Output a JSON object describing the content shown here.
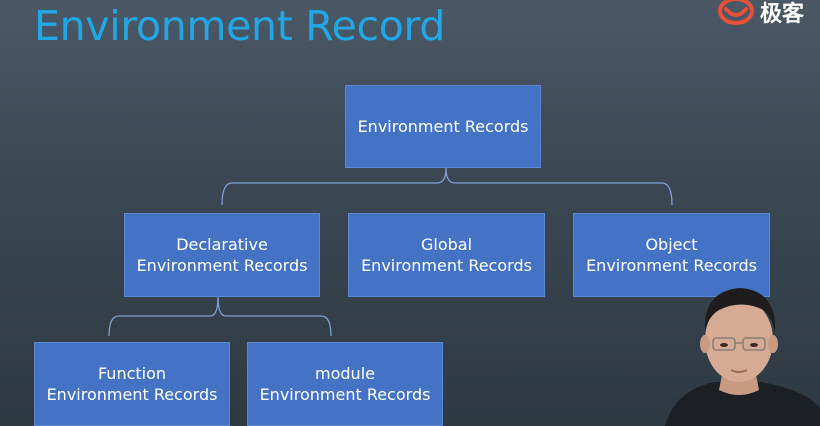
{
  "slide": {
    "title": "Environment Record"
  },
  "logo": {
    "icon": "geekbang-logo-icon",
    "text": "极客",
    "color": "#e8503a"
  },
  "diagram": {
    "root": {
      "line1": "Environment Records"
    },
    "children": [
      {
        "line1": "Declarative",
        "line2": "Environment Records"
      },
      {
        "line1": "Global",
        "line2": "Environment Records"
      },
      {
        "line1": "Object",
        "line2": "Environment Records"
      }
    ],
    "grandchildren": [
      {
        "line1": "Function",
        "line2": "Environment Records"
      },
      {
        "line1": "module",
        "line2": "Environment Records"
      }
    ]
  },
  "colors": {
    "title": "#22a7e6",
    "node_fill": "#4473c5",
    "connector": "#7f9fd6",
    "background": "#3a4652"
  }
}
